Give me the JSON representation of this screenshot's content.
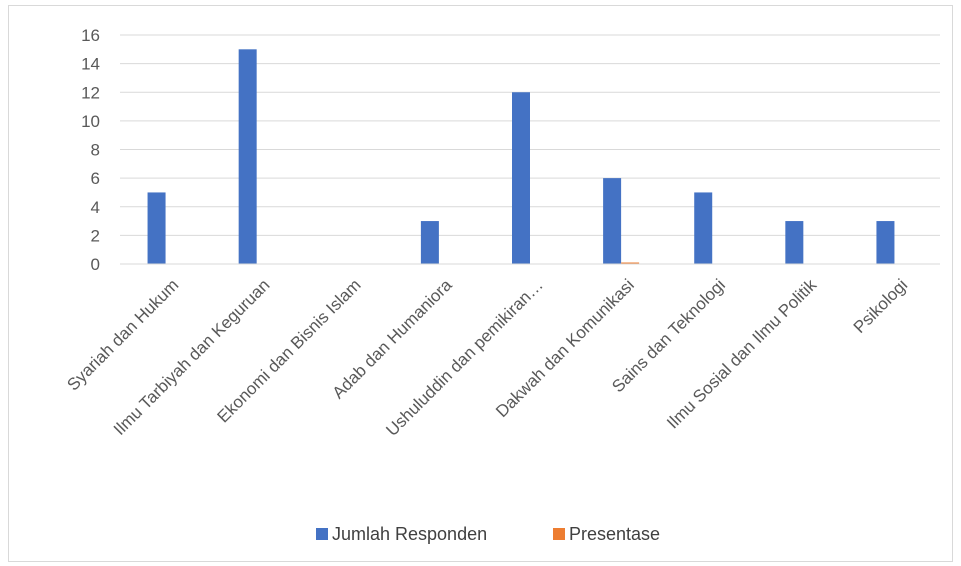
{
  "chart_data": {
    "type": "bar",
    "title": "",
    "xlabel": "",
    "ylabel": "",
    "ylim": [
      0,
      16
    ],
    "yticks": [
      0,
      2,
      4,
      6,
      8,
      10,
      12,
      14,
      16
    ],
    "grid": true,
    "legend_position": "bottom",
    "categories": [
      "Syariah dan Hukum",
      "Ilmu Tarbiyah dan Keguruan",
      "Ekonomi dan Bisnis Islam",
      "Adab dan Humaniora",
      "Ushuluddin dan pemikiran…",
      "Dakwah dan Komunikasi",
      "Sains dan Teknologi",
      "Ilmu Sosial dan  Ilmu Politik",
      "Psikologi"
    ],
    "series": [
      {
        "name": "Jumlah Responden",
        "color": "#4472c4",
        "values": [
          5,
          15,
          0,
          3,
          12,
          6,
          5,
          3,
          3
        ]
      },
      {
        "name": "Presentase",
        "color": "#ed7d31",
        "values": [
          0,
          0,
          0,
          0,
          0,
          0.1,
          0,
          0,
          0
        ]
      }
    ]
  }
}
